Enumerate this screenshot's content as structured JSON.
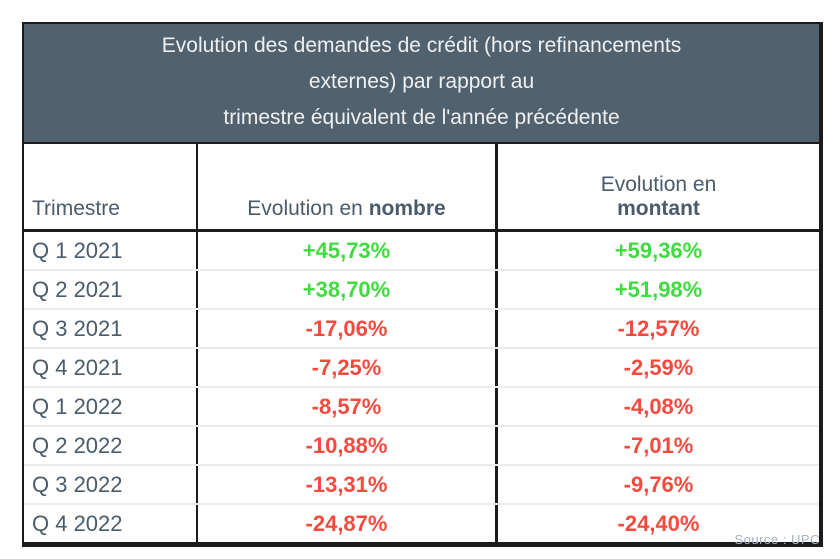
{
  "table": {
    "title_lines": [
      "Evolution des demandes de crédit (hors refinancements",
      "externes) par rapport au",
      "trimestre équivalent de l'année précédente"
    ],
    "headers": {
      "trimestre": "Trimestre",
      "nombre_prefix": "Evolution en",
      "nombre_bold": "nombre",
      "montant_prefix": "Evolution en",
      "montant_bold": "montant"
    },
    "rows": [
      {
        "q": "Q 1 2021",
        "nombre": "+45,73%",
        "montant": "+59,36%"
      },
      {
        "q": "Q 2 2021",
        "nombre": "+38,70%",
        "montant": "+51,98%"
      },
      {
        "q": "Q 3 2021",
        "nombre": "-17,06%",
        "montant": "-12,57%"
      },
      {
        "q": "Q 4 2021",
        "nombre": "-7,25%",
        "montant": "-2,59%"
      },
      {
        "q": "Q 1 2022",
        "nombre": "-8,57%",
        "montant": "-4,08%"
      },
      {
        "q": "Q 2 2022",
        "nombre": "-10,88%",
        "montant": "-7,01%"
      },
      {
        "q": "Q 3 2022",
        "nombre": "-13,31%",
        "montant": "-9,76%"
      },
      {
        "q": "Q 4 2022",
        "nombre": "-24,87%",
        "montant": "-24,40%"
      }
    ],
    "source_label": "Source : UPC"
  },
  "colors": {
    "positive": "#3edc3e",
    "negative": "#f74a3e",
    "header_bg": "#52616e",
    "header_text": "#eef1f3",
    "body_text": "#4a5b6b",
    "source_text": "#a6b4c4"
  },
  "chart_data": {
    "type": "table",
    "title": "Evolution des demandes de crédit (hors refinancements externes) par rapport au trimestre équivalent de l'année précédente",
    "columns": [
      "Trimestre",
      "Evolution en nombre",
      "Evolution en montant"
    ],
    "categories": [
      "Q 1 2021",
      "Q 2 2021",
      "Q 3 2021",
      "Q 4 2021",
      "Q 1 2022",
      "Q 2 2022",
      "Q 3 2022",
      "Q 4 2022"
    ],
    "series": [
      {
        "name": "Evolution en nombre (%)",
        "values": [
          45.73,
          38.7,
          -17.06,
          -7.25,
          -8.57,
          -10.88,
          -13.31,
          -24.87
        ]
      },
      {
        "name": "Evolution en montant (%)",
        "values": [
          59.36,
          51.98,
          -12.57,
          -2.59,
          -4.08,
          -7.01,
          -9.76,
          -24.4
        ]
      }
    ],
    "value_format": "signed percent, French comma decimals",
    "positive_color": "#3edc3e",
    "negative_color": "#f74a3e",
    "source": "Source : UPC",
    "layout": "static data table, green for positive values, red for negative values"
  }
}
